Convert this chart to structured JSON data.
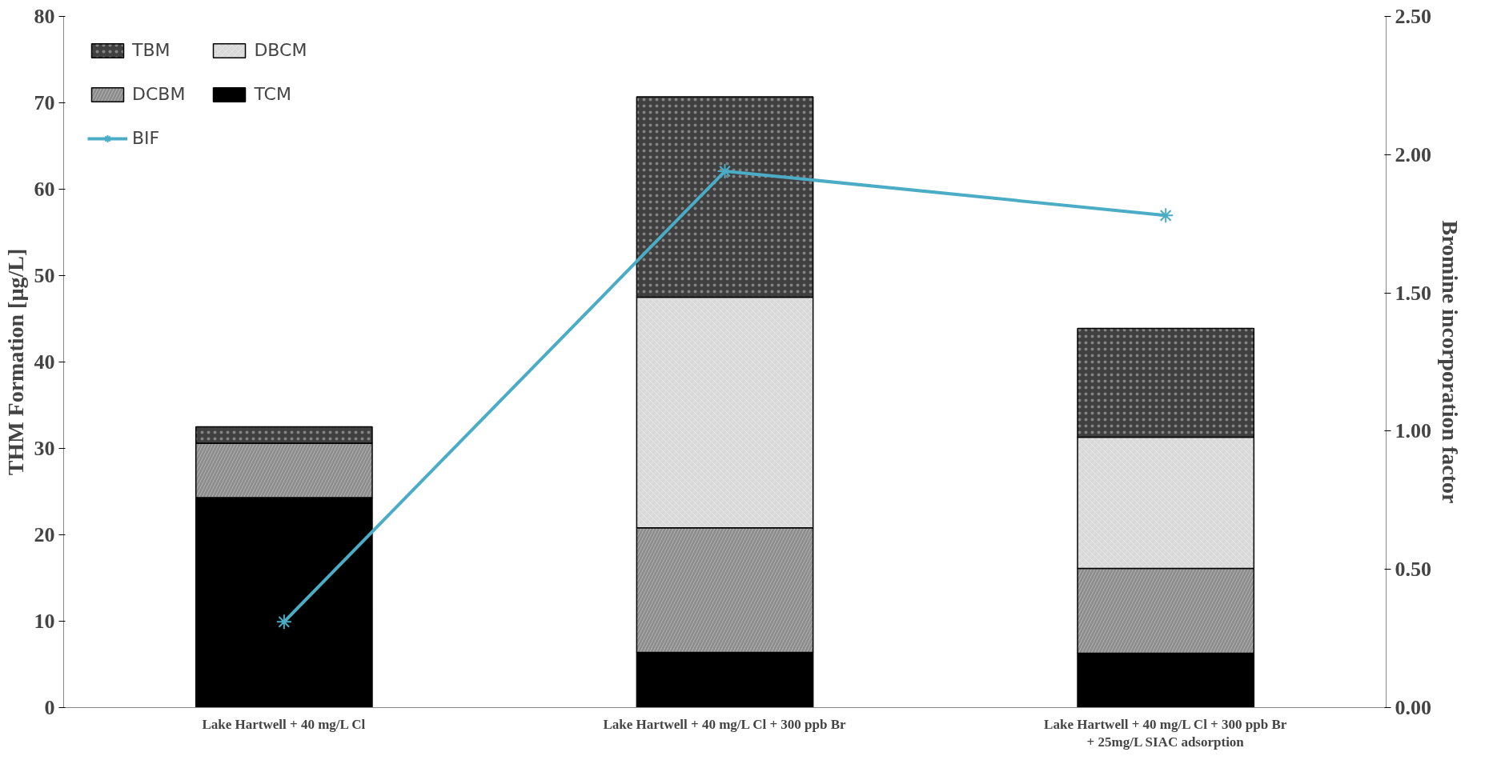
{
  "chart_data": {
    "type": "bar",
    "stacked": true,
    "ylabel": "THM Formation [µg/L]",
    "y2label": "Bromine incorporation factor",
    "categories": [
      "Lake Hartwell + 40 mg/L Cl",
      "Lake Hartwell + 40 mg/L Cl + 300 ppb Br",
      "Lake Hartwell + 40 mg/L Cl + 300 ppb Br\n+ 25mg/L SIAC adsorption"
    ],
    "series": [
      {
        "name": "TCM",
        "color": "#000000",
        "values": [
          24.3,
          6.4,
          6.3
        ]
      },
      {
        "name": "DCBM",
        "color": "#8c8c8c",
        "values": [
          6.3,
          14.4,
          9.8
        ]
      },
      {
        "name": "DBCM",
        "color": "#d9d9d9",
        "values": [
          0,
          26.7,
          15.2
        ]
      },
      {
        "name": "TBM",
        "color": "#404040",
        "values": [
          1.9,
          23.2,
          12.6
        ]
      },
      {
        "name": "BIF",
        "type": "line",
        "axis": "y2",
        "color": "#4bacc6",
        "marker": "cross",
        "values": [
          0.31,
          1.94,
          1.78
        ]
      }
    ],
    "ylim": [
      0,
      80
    ],
    "yticks": [
      0,
      10,
      20,
      30,
      40,
      50,
      60,
      70,
      80
    ],
    "y2lim": [
      0,
      2.5
    ],
    "y2ticks": [
      {
        "value": 0,
        "label": "0.00"
      },
      {
        "value": 0.5,
        "label": "0.50"
      },
      {
        "value": 1,
        "label": "1.00"
      },
      {
        "value": 1.5,
        "label": "1.50"
      },
      {
        "value": 2,
        "label": "2.00"
      },
      {
        "value": 2.5,
        "label": "2.50"
      }
    ],
    "grid": false,
    "legend": "top left"
  }
}
